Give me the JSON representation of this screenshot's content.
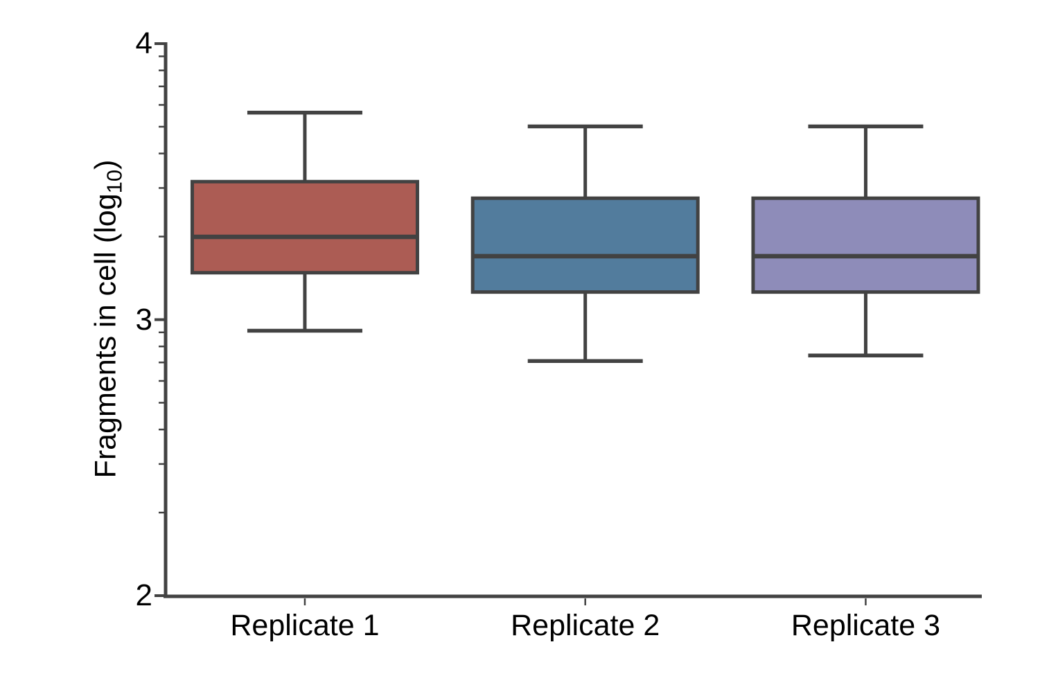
{
  "figure": {
    "background": "#ffffff",
    "line_color": "#424242",
    "text_color": "#000000",
    "y_axis": {
      "label_prefix": "Fragments in cell (log",
      "label_sub": "10",
      "label_suffix": ")",
      "min": 2,
      "max": 4,
      "major_ticks": [
        4,
        3,
        2
      ],
      "minor_ticks": [
        2.301,
        2.477,
        2.602,
        2.699,
        2.778,
        2.845,
        2.903,
        2.954,
        3.301,
        3.477,
        3.602,
        3.699,
        3.778,
        3.845,
        3.903,
        3.954
      ]
    },
    "x_axis": {
      "categories": [
        "Replicate 1",
        "Replicate 2",
        "Replicate 3"
      ]
    }
  },
  "chart_data": {
    "type": "box",
    "title": "",
    "xlabel": "",
    "ylabel": "Fragments in cell (log10)",
    "ylim": [
      2,
      4
    ],
    "grid": false,
    "legend": false,
    "categories": [
      "Replicate 1",
      "Replicate 2",
      "Replicate 3"
    ],
    "series": [
      {
        "name": "Replicate 1",
        "color": "#ac5c54",
        "whisker_low": 2.96,
        "q1": 3.17,
        "median": 3.3,
        "q3": 3.5,
        "whisker_high": 3.75
      },
      {
        "name": "Replicate 2",
        "color": "#527c9d",
        "whisker_low": 2.85,
        "q1": 3.1,
        "median": 3.23,
        "q3": 3.44,
        "whisker_high": 3.7
      },
      {
        "name": "Replicate 3",
        "color": "#8e8cb9",
        "whisker_low": 2.87,
        "q1": 3.1,
        "median": 3.23,
        "q3": 3.44,
        "whisker_high": 3.7
      }
    ]
  }
}
